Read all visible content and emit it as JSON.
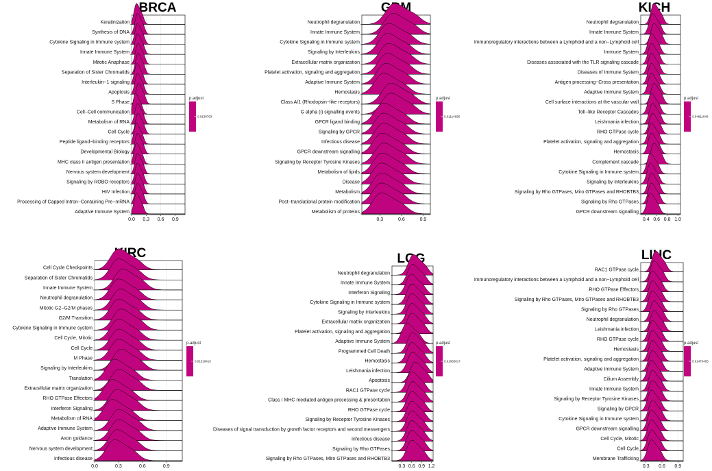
{
  "colors": {
    "fill": "#c0047f",
    "stroke": "#000000",
    "grid": "#e6e6e6",
    "panel_border": "#333333"
  },
  "chart_data": [
    {
      "type": "ridgeline",
      "title": "BRCA",
      "terms": [
        "Keratinization",
        "Synthesis of DNA",
        "Cytokine Signaling in Immune system",
        "Innate Immune System",
        "Mitotic Anaphase",
        "Separation of Sister Chromatids",
        "Interleukin−1 signaling",
        "Apoptosis",
        "S Phase",
        "Cell−Cell communication",
        "Metabolism of RNA",
        "Cell Cycle",
        "Peptide ligand−binding receptors",
        "Developmental Biology",
        "MHC class II antigen presentation",
        "Nervous system development",
        "Signaling by ROBO receptors",
        "HIV Infection",
        "Processing of Capped Intron−Containing Pre−mRNA",
        "Adaptive Immune System"
      ],
      "xlim": [
        0,
        1.1
      ],
      "xticks": [
        0.0,
        0.3,
        0.6,
        0.9
      ],
      "tick_labels": [
        "0.0",
        "0.3",
        "0.6",
        "0.9"
      ],
      "peaks": [
        0.1,
        0.12,
        0.12,
        0.12,
        0.13,
        0.13,
        0.11,
        0.12,
        0.14,
        0.08,
        0.12,
        0.13,
        0.1,
        0.12,
        0.1,
        0.12,
        0.12,
        0.12,
        0.12,
        0.1
      ],
      "spread": 0.05,
      "legend": {
        "title": "p.adjust",
        "value": "0.0138763"
      }
    },
    {
      "type": "ridgeline",
      "title": "GBM",
      "terms": [
        "Neutrophil degranulation",
        "Innate Immune System",
        "Cytokine Signaling in Immune system",
        "Signaling by Interleukins",
        "Extracellular matrix organization",
        "Platelet activation, signaling and aggregation",
        "Adaptive Immune System",
        "Hemostasis",
        "Class A/1 (Rhodopsin−like receptors)",
        "G alpha (i) signalling events",
        "GPCR ligand binding",
        "Signaling by GPCR",
        "Infectious disease",
        "GPCR downstream signalling",
        "Signaling by Receptor Tyrosine Kinases",
        "Metabolism of lipids",
        "Disease",
        "Metabolism",
        "Post−translational protein modification",
        "Metabolism of proteins"
      ],
      "xlim": [
        0.05,
        1.0
      ],
      "xticks": [
        0.3,
        0.6,
        0.9
      ],
      "tick_labels": [
        "0.3",
        "0.6",
        "0.9"
      ],
      "peaks": [
        0.5,
        0.48,
        0.42,
        0.4,
        0.42,
        0.4,
        0.38,
        0.35,
        0.45,
        0.45,
        0.35,
        0.35,
        0.35,
        0.33,
        0.35,
        0.33,
        0.32,
        0.32,
        0.32,
        0.32
      ],
      "spread": 0.12,
      "legend": {
        "title": "p.adjust",
        "value": "0.01114695"
      }
    },
    {
      "type": "ridgeline",
      "title": "KICH",
      "terms": [
        "Neutrophil degranulation",
        "Innate Immune System",
        "Immunoregulatory interactions between a Lymphoid and a non−Lymphoid cell",
        "Immune System",
        "Diseases associated with the TLR signaling cascade",
        "Diseases of Immune System",
        "Antigen processing−Cross presentation",
        "Adaptive Immune System",
        "Cell surface interactions at the vascular wall",
        "Toll−like Receptor Cascades",
        "Leishmania infection",
        "RHO GTPase cycle",
        "Platelet activation, signaling and aggregation",
        "Hemostasis",
        "Complement cascade",
        "Cytokine Signaling in Immune system",
        "Signaling by Interleukins",
        "Signaling by Rho GTPases, Miro GTPases and RHOBTB3",
        "Signaling by Rho GTPases",
        "GPCR downstream signalling"
      ],
      "xlim": [
        0.3,
        1.05
      ],
      "xticks": [
        0.4,
        0.6,
        0.8,
        1.0
      ],
      "tick_labels": [
        "0.4",
        "0.6",
        "0.8",
        "1.0"
      ],
      "peaks": [
        0.55,
        0.52,
        0.55,
        0.5,
        0.5,
        0.5,
        0.5,
        0.5,
        0.55,
        0.5,
        0.52,
        0.52,
        0.5,
        0.5,
        0.55,
        0.48,
        0.48,
        0.5,
        0.5,
        0.48
      ],
      "spread": 0.06,
      "legend": {
        "title": "p.adjust",
        "value": "0.04811649"
      }
    },
    {
      "type": "ridgeline",
      "title": "KIRC",
      "terms": [
        "Cell Cycle Checkpoints",
        "Separation of Sister Chromatids",
        "Innate Immune System",
        "Neutrophil degranulation",
        "Mitotic G2−G2/M phases",
        "G2/M Transition",
        "Cytokine Signaling in Immune system",
        "Cell Cycle, Mitotic",
        "Cell Cycle",
        "M Phase",
        "Signaling by Interleukins",
        "Translation",
        "Extracellular matrix organization",
        "RHO GTPase Effectors",
        "Interferon Signaling",
        "Metabolism of RNA",
        "Adaptive Immune System",
        "Axon guidance",
        "Nervous system development",
        "Infectious disease"
      ],
      "xlim": [
        0.0,
        1.1
      ],
      "xticks": [
        0.0,
        0.3,
        0.6,
        0.9
      ],
      "tick_labels": [
        "0.0",
        "0.3",
        "0.6",
        "0.9"
      ],
      "peaks": [
        0.3,
        0.3,
        0.35,
        0.3,
        0.32,
        0.3,
        0.33,
        0.3,
        0.3,
        0.3,
        0.33,
        0.25,
        0.3,
        0.22,
        0.28,
        0.22,
        0.3,
        0.3,
        0.28,
        0.25
      ],
      "spread": 0.1,
      "legend": {
        "title": "p.adjust",
        "value": "0.01516415"
      }
    },
    {
      "type": "ridgeline",
      "title": "LGG",
      "terms": [
        "Neutrophil degranulation",
        "Innate Immune System",
        "Interferon Signaling",
        "Cytokine Signaling in Immune system",
        "Signaling by Interleukins",
        "Extracellular matrix organization",
        "Platelet activation, signaling and aggregation",
        "Adaptive Immune System",
        "Programmed Cell Death",
        "Hemostasis",
        "Leishmania infection",
        "Apoptosis",
        "RAC1 GTPase cycle",
        "Class I MHC mediated antigen processing & presentation",
        "RHO GTPase cycle",
        "Signaling by Receptor Tyrosine Kinases",
        "Diseases of signal transduction by growth factor receptors and second messengers",
        "Infectious disease",
        "Signaling by Rho GTPases",
        "Signaling by Rho GTPases, Miro GTPases and RHOBTB3"
      ],
      "xlim": [
        0.0,
        1.25
      ],
      "xticks": [
        0.3,
        0.6,
        0.9,
        1.2
      ],
      "tick_labels": [
        "0.3",
        "0.6",
        "0.9",
        "1.2"
      ],
      "peaks": [
        0.65,
        0.62,
        0.58,
        0.6,
        0.6,
        0.6,
        0.6,
        0.45,
        0.62,
        0.6,
        0.62,
        0.7,
        0.6,
        0.62,
        0.6,
        0.6,
        0.6,
        0.6,
        0.6,
        0.6
      ],
      "spread": 0.15,
      "legend": {
        "title": "p.adjust",
        "value": "0.01065017"
      }
    },
    {
      "type": "ridgeline",
      "title": "LIHC",
      "terms": [
        "RAC1 GTPase cycle",
        "Immunoregulatory interactions between a Lymphoid and a non−Lymphoid cell",
        "RHO GTPase Effectors",
        "Signaling by Rho GTPases, Miro GTPases and RHOBTB3",
        "Signaling by Rho GTPases",
        "Neutrophil degranulation",
        "Leishmania infection",
        "RHO GTPase cycle",
        "Hemostasis",
        "Platelet activation, signaling and aggregation",
        "Adaptive Immune System",
        "Cilium Assembly",
        "Innate Immune System",
        "Signaling by Receptor Tyrosine Kinases",
        "Signaling by GPCR",
        "Cytokine Signaling in Immune system",
        "GPCR downstream signalling",
        "Cell Cycle, Mitotic",
        "Cell Cycle",
        "Membrane Trafficking"
      ],
      "xlim": [
        0.2,
        1.0
      ],
      "xticks": [
        0.3,
        0.6,
        0.9
      ],
      "tick_labels": [
        "0.3",
        "0.6",
        "0.9"
      ],
      "peaks": [
        0.48,
        0.45,
        0.42,
        0.42,
        0.42,
        0.45,
        0.45,
        0.42,
        0.42,
        0.42,
        0.42,
        0.4,
        0.42,
        0.42,
        0.4,
        0.42,
        0.4,
        0.4,
        0.4,
        0.4
      ],
      "spread": 0.07,
      "legend": {
        "title": "p.adjust",
        "value": "0.01470405"
      }
    }
  ]
}
